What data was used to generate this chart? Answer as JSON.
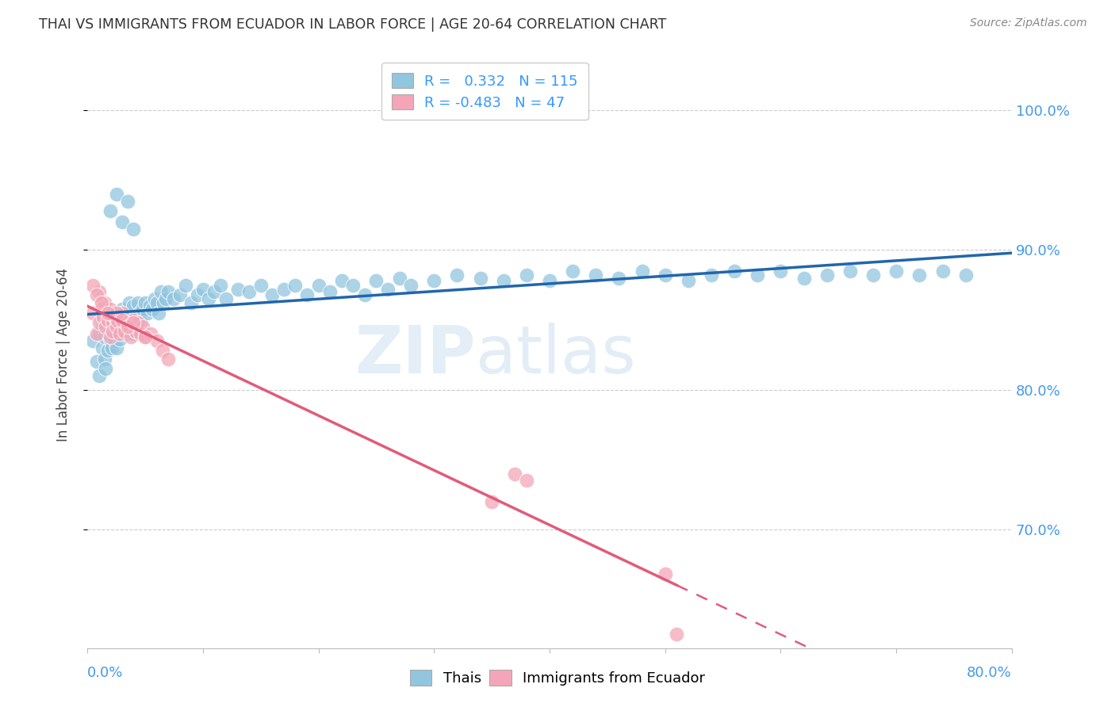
{
  "title": "THAI VS IMMIGRANTS FROM ECUADOR IN LABOR FORCE | AGE 20-64 CORRELATION CHART",
  "source": "Source: ZipAtlas.com",
  "ylabel": "In Labor Force | Age 20-64",
  "ytick_values": [
    1.0,
    0.9,
    0.8,
    0.7
  ],
  "xmin": 0.0,
  "xmax": 0.8,
  "ymin": 0.615,
  "ymax": 1.035,
  "legend_blue_r": "0.332",
  "legend_blue_n": "115",
  "legend_pink_r": "-0.483",
  "legend_pink_n": "47",
  "blue_color": "#92c5de",
  "pink_color": "#f4a6b8",
  "blue_line_color": "#2166ac",
  "pink_line_color": "#e05c7a",
  "blue_scatter_x": [
    0.005,
    0.008,
    0.01,
    0.01,
    0.012,
    0.013,
    0.014,
    0.015,
    0.015,
    0.016,
    0.017,
    0.018,
    0.018,
    0.019,
    0.02,
    0.02,
    0.021,
    0.021,
    0.022,
    0.022,
    0.023,
    0.023,
    0.024,
    0.025,
    0.025,
    0.026,
    0.027,
    0.028,
    0.029,
    0.03,
    0.03,
    0.031,
    0.032,
    0.033,
    0.034,
    0.035,
    0.036,
    0.037,
    0.038,
    0.039,
    0.04,
    0.041,
    0.042,
    0.043,
    0.044,
    0.045,
    0.046,
    0.047,
    0.048,
    0.05,
    0.052,
    0.054,
    0.056,
    0.058,
    0.06,
    0.062,
    0.064,
    0.066,
    0.068,
    0.07,
    0.075,
    0.08,
    0.085,
    0.09,
    0.095,
    0.1,
    0.105,
    0.11,
    0.115,
    0.12,
    0.13,
    0.14,
    0.15,
    0.16,
    0.17,
    0.18,
    0.19,
    0.2,
    0.21,
    0.22,
    0.23,
    0.24,
    0.25,
    0.26,
    0.27,
    0.28,
    0.3,
    0.32,
    0.34,
    0.36,
    0.38,
    0.4,
    0.42,
    0.44,
    0.46,
    0.48,
    0.5,
    0.52,
    0.54,
    0.56,
    0.58,
    0.6,
    0.62,
    0.64,
    0.66,
    0.68,
    0.7,
    0.72,
    0.74,
    0.76,
    0.025,
    0.035,
    0.02,
    0.03,
    0.04
  ],
  "blue_scatter_y": [
    0.835,
    0.82,
    0.84,
    0.81,
    0.85,
    0.83,
    0.845,
    0.838,
    0.822,
    0.815,
    0.855,
    0.84,
    0.828,
    0.842,
    0.852,
    0.836,
    0.845,
    0.83,
    0.848,
    0.838,
    0.843,
    0.855,
    0.835,
    0.847,
    0.83,
    0.84,
    0.852,
    0.836,
    0.845,
    0.858,
    0.842,
    0.848,
    0.855,
    0.84,
    0.852,
    0.848,
    0.862,
    0.845,
    0.852,
    0.84,
    0.86,
    0.848,
    0.852,
    0.845,
    0.862,
    0.855,
    0.848,
    0.84,
    0.858,
    0.862,
    0.855,
    0.86,
    0.858,
    0.865,
    0.862,
    0.855,
    0.87,
    0.862,
    0.865,
    0.87,
    0.865,
    0.868,
    0.875,
    0.862,
    0.868,
    0.872,
    0.865,
    0.87,
    0.875,
    0.865,
    0.872,
    0.87,
    0.875,
    0.868,
    0.872,
    0.875,
    0.868,
    0.875,
    0.87,
    0.878,
    0.875,
    0.868,
    0.878,
    0.872,
    0.88,
    0.875,
    0.878,
    0.882,
    0.88,
    0.878,
    0.882,
    0.878,
    0.885,
    0.882,
    0.88,
    0.885,
    0.882,
    0.878,
    0.882,
    0.885,
    0.882,
    0.885,
    0.88,
    0.882,
    0.885,
    0.882,
    0.885,
    0.882,
    0.885,
    0.882,
    0.94,
    0.935,
    0.928,
    0.92,
    0.915
  ],
  "pink_scatter_x": [
    0.005,
    0.008,
    0.01,
    0.012,
    0.014,
    0.016,
    0.018,
    0.02,
    0.02,
    0.022,
    0.022,
    0.024,
    0.025,
    0.026,
    0.028,
    0.03,
    0.032,
    0.034,
    0.036,
    0.038,
    0.04,
    0.042,
    0.044,
    0.046,
    0.048,
    0.05,
    0.055,
    0.06,
    0.065,
    0.07,
    0.01,
    0.015,
    0.02,
    0.025,
    0.005,
    0.008,
    0.012,
    0.018,
    0.03,
    0.035,
    0.04,
    0.05,
    0.35,
    0.37,
    0.38,
    0.5,
    0.51
  ],
  "pink_scatter_y": [
    0.855,
    0.84,
    0.848,
    0.858,
    0.852,
    0.845,
    0.85,
    0.855,
    0.838,
    0.848,
    0.842,
    0.852,
    0.845,
    0.85,
    0.84,
    0.855,
    0.842,
    0.848,
    0.845,
    0.838,
    0.85,
    0.842,
    0.848,
    0.84,
    0.845,
    0.838,
    0.84,
    0.835,
    0.828,
    0.822,
    0.87,
    0.862,
    0.858,
    0.855,
    0.875,
    0.868,
    0.862,
    0.855,
    0.85,
    0.845,
    0.848,
    0.838,
    0.72,
    0.74,
    0.735,
    0.668,
    0.625
  ]
}
